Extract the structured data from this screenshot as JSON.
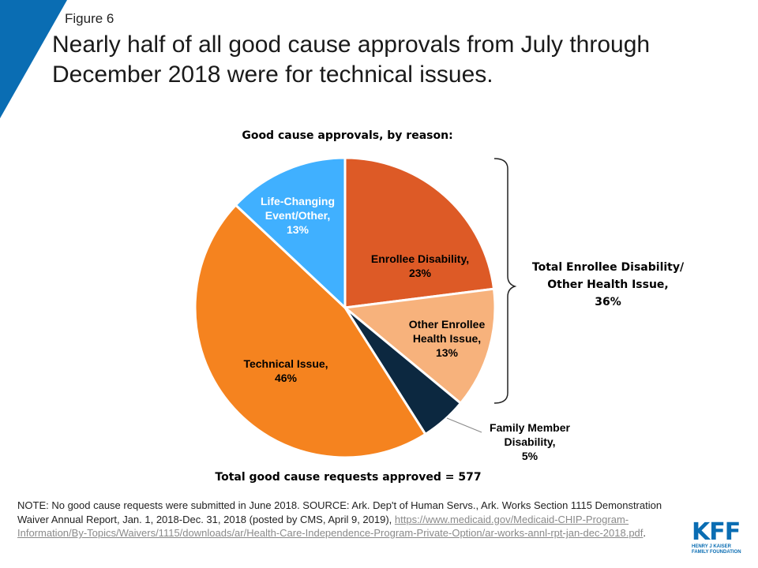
{
  "figure_label": "Figure 6",
  "title": "Nearly half of all good cause approvals from July through December 2018 were for technical issues.",
  "colors": {
    "accent_corner": "#0a6db3",
    "enrollee_disability": "#dd5a26",
    "other_health": "#f7b27c",
    "family_member": "#0c2840",
    "technical": "#f5831f",
    "life_changing": "#40b0ff"
  },
  "chart_data": {
    "type": "pie",
    "title": "Good cause approvals, by reason:",
    "slices": [
      {
        "label": "Enrollee Disability,\n23%",
        "value": 23,
        "color": "#dd5a26",
        "text_color": "#1a1a1a"
      },
      {
        "label": "Other Enrollee\nHealth Issue,\n13%",
        "value": 13,
        "color": "#f7b27c",
        "text_color": "#1a1a1a"
      },
      {
        "label": "Family Member\nDisability,\n5%",
        "value": 5,
        "color": "#0c2840",
        "text_color": "#1a1a1a"
      },
      {
        "label": "Technical Issue,\n46%",
        "value": 46,
        "color": "#f5831f",
        "text_color": "#1a1a1a"
      },
      {
        "label": "Life-Changing\nEvent/Other,\n13%",
        "value": 13,
        "color": "#40b0ff",
        "text_color": "#ffffff"
      }
    ],
    "group_annotation": "Total Enrollee Disability/\nOther Health Issue,\n36%",
    "footer": "Total good cause requests approved = 577"
  },
  "note": {
    "text": "NOTE:  No good cause requests were submitted in June 2018. SOURCE: Ark. Dep't of Human Servs., Ark. Works Section 1115 Demonstration Waiver Annual Report, Jan. 1, 2018-Dec. 31, 2018 (posted by CMS, April 9, 2019), ",
    "link": "https://www.medicaid.gov/Medicaid-CHIP-Program-Information/By-Topics/Waivers/1115/downloads/ar/Health-Care-Independence-Program-Private-Option/ar-works-annl-rpt-jan-dec-2018.pdf",
    "trailing": "."
  },
  "logo": {
    "mark": "KFF",
    "sub": "HENRY J KAISER\nFAMILY FOUNDATION"
  }
}
